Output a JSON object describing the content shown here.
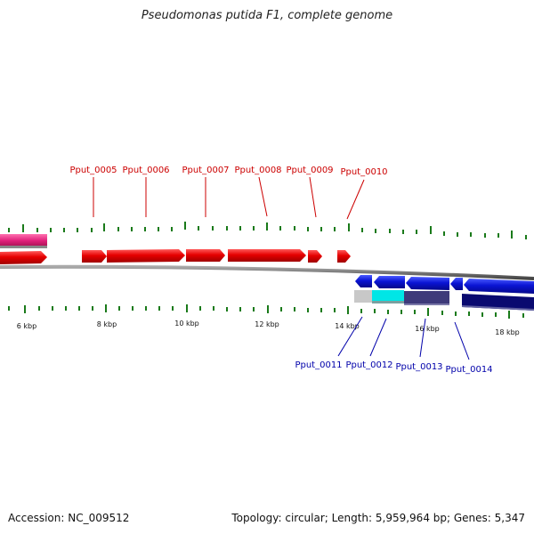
{
  "title": "Pseudomonas putida F1, complete genome",
  "footer": {
    "accession": "Accession: NC_009512",
    "summary": "Topology: circular; Length: 5,959,964 bp; Genes: 5,347"
  },
  "colors": {
    "forward_gene": "#e60000",
    "reverse_gene": "#0a14d4",
    "feature_pink": "#e0207a",
    "feature_cyan": "#00e6e6",
    "feature_gray": "#c8c8c8",
    "feature_slate": "#3e3a7a",
    "feature_navy": "#0a0a70",
    "ticks": "#1a7a1a",
    "backbone": "#777777"
  },
  "scale": {
    "unit": "kbp",
    "major_labels": [
      "6 kbp",
      "8 kbp",
      "10 kbp",
      "12 kbp",
      "14 kbp",
      "16 kbp",
      "18 kbp"
    ]
  },
  "genes_top": [
    {
      "label": "Pput_0005"
    },
    {
      "label": "Pput_0006"
    },
    {
      "label": "Pput_0007"
    },
    {
      "label": "Pput_0008"
    },
    {
      "label": "Pput_0009"
    },
    {
      "label": "Pput_0010"
    }
  ],
  "genes_bottom": [
    {
      "label": "Pput_0011"
    },
    {
      "label": "Pput_0012"
    },
    {
      "label": "Pput_0013"
    },
    {
      "label": "Pput_0014"
    }
  ]
}
